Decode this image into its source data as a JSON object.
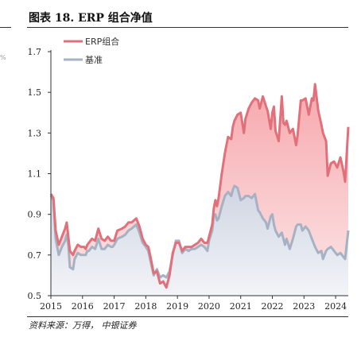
{
  "figure": {
    "title": "图表 18. ERP 组合净值",
    "source": "资料来源：万得， 中银证券",
    "stray_text": "%"
  },
  "colors": {
    "erp": "#e2707a",
    "benchmark": "#a7b1c4",
    "erp_fill_top": "#f6a3a8",
    "bench_fill_top": "#d8dde8"
  },
  "chart_data": {
    "type": "area",
    "title": "",
    "xlabel": "",
    "ylabel": "",
    "ylim": [
      0.5,
      1.7
    ],
    "yticks": [
      "0.5",
      "0.7",
      "0.9",
      "1.1",
      "1.3",
      "1.5",
      "1.7"
    ],
    "xlim": [
      2015.0,
      2024.4
    ],
    "xticks": [
      "2015",
      "2016",
      "2017",
      "2018",
      "2019",
      "2020",
      "2021",
      "2022",
      "2023",
      "2024"
    ],
    "grid": false,
    "legend_position": "top-left",
    "series": [
      {
        "name": "ERP组合",
        "x": [
          2015.0,
          2015.08,
          2015.15,
          2015.25,
          2015.35,
          2015.45,
          2015.5,
          2015.55,
          2015.6,
          2015.7,
          2015.75,
          2015.85,
          2015.95,
          2016.05,
          2016.1,
          2016.15,
          2016.2,
          2016.3,
          2016.4,
          2016.5,
          2016.6,
          2016.7,
          2016.8,
          2016.9,
          2016.95,
          2017.0,
          2017.1,
          2017.25,
          2017.35,
          2017.45,
          2017.55,
          2017.7,
          2017.8,
          2017.9,
          2018.0,
          2018.08,
          2018.15,
          2018.25,
          2018.35,
          2018.45,
          2018.55,
          2018.65,
          2018.75,
          2018.85,
          2018.95,
          2019.05,
          2019.15,
          2019.25,
          2019.35,
          2019.45,
          2019.55,
          2019.65,
          2019.75,
          2019.85,
          2019.95,
          2020.0,
          2020.1,
          2020.15,
          2020.2,
          2020.25,
          2020.3,
          2020.4,
          2020.5,
          2020.6,
          2020.7,
          2020.75,
          2020.8,
          2020.9,
          2021.0,
          2021.1,
          2021.15,
          2021.25,
          2021.35,
          2021.45,
          2021.55,
          2021.6,
          2021.7,
          2021.8,
          2021.85,
          2021.95,
          2022.0,
          2022.05,
          2022.1,
          2022.2,
          2022.3,
          2022.35,
          2022.4,
          2022.45,
          2022.55,
          2022.65,
          2022.75,
          2022.8,
          2022.9,
          2022.95,
          2023.05,
          2023.15,
          2023.25,
          2023.3,
          2023.35,
          2023.45,
          2023.55,
          2023.6,
          2023.7,
          2023.75,
          2023.85,
          2023.95,
          2024.05,
          2024.15,
          2024.25,
          2024.3,
          2024.4
        ],
        "values": [
          1.0,
          0.98,
          0.82,
          0.75,
          0.79,
          0.83,
          0.86,
          0.79,
          0.72,
          0.7,
          0.72,
          0.75,
          0.74,
          0.74,
          0.73,
          0.75,
          0.76,
          0.78,
          0.77,
          0.83,
          0.78,
          0.77,
          0.79,
          0.77,
          0.77,
          0.77,
          0.82,
          0.83,
          0.84,
          0.86,
          0.86,
          0.88,
          0.84,
          0.78,
          0.75,
          0.74,
          0.69,
          0.61,
          0.62,
          0.56,
          0.57,
          0.54,
          0.6,
          0.71,
          0.76,
          0.76,
          0.72,
          0.74,
          0.74,
          0.74,
          0.75,
          0.76,
          0.78,
          0.76,
          0.76,
          0.79,
          0.85,
          0.93,
          0.97,
          0.94,
          0.98,
          1.1,
          1.2,
          1.28,
          1.27,
          1.33,
          1.36,
          1.39,
          1.4,
          1.3,
          1.37,
          1.42,
          1.45,
          1.47,
          1.46,
          1.42,
          1.48,
          1.43,
          1.41,
          1.32,
          1.4,
          1.43,
          1.31,
          1.26,
          1.48,
          1.35,
          1.34,
          1.36,
          1.3,
          1.32,
          1.24,
          1.29,
          1.46,
          1.46,
          1.47,
          1.39,
          1.47,
          1.46,
          1.54,
          1.41,
          1.34,
          1.3,
          1.26,
          1.09,
          1.15,
          1.16,
          1.13,
          1.18,
          1.11,
          1.06,
          1.33
        ]
      },
      {
        "name": "基准",
        "x": [
          2015.0,
          2015.08,
          2015.15,
          2015.25,
          2015.35,
          2015.45,
          2015.5,
          2015.55,
          2015.6,
          2015.7,
          2015.75,
          2015.85,
          2015.95,
          2016.05,
          2016.1,
          2016.15,
          2016.2,
          2016.3,
          2016.4,
          2016.5,
          2016.6,
          2016.7,
          2016.8,
          2016.9,
          2016.95,
          2017.0,
          2017.1,
          2017.25,
          2017.35,
          2017.45,
          2017.55,
          2017.7,
          2017.8,
          2017.9,
          2018.0,
          2018.08,
          2018.15,
          2018.25,
          2018.35,
          2018.45,
          2018.55,
          2018.65,
          2018.75,
          2018.85,
          2018.95,
          2019.05,
          2019.15,
          2019.25,
          2019.35,
          2019.45,
          2019.55,
          2019.65,
          2019.75,
          2019.85,
          2019.95,
          2020.0,
          2020.1,
          2020.15,
          2020.2,
          2020.25,
          2020.3,
          2020.4,
          2020.5,
          2020.6,
          2020.7,
          2020.75,
          2020.8,
          2020.9,
          2021.0,
          2021.1,
          2021.15,
          2021.25,
          2021.35,
          2021.45,
          2021.55,
          2021.6,
          2021.7,
          2021.8,
          2021.85,
          2021.95,
          2022.0,
          2022.05,
          2022.1,
          2022.2,
          2022.3,
          2022.35,
          2022.4,
          2022.45,
          2022.55,
          2022.65,
          2022.75,
          2022.8,
          2022.9,
          2022.95,
          2023.05,
          2023.15,
          2023.25,
          2023.3,
          2023.35,
          2023.45,
          2023.55,
          2023.6,
          2023.7,
          2023.75,
          2023.85,
          2023.95,
          2024.05,
          2024.15,
          2024.25,
          2024.3,
          2024.4
        ],
        "values": [
          0.99,
          0.97,
          0.78,
          0.7,
          0.74,
          0.77,
          0.8,
          0.75,
          0.64,
          0.63,
          0.68,
          0.71,
          0.7,
          0.7,
          0.7,
          0.72,
          0.72,
          0.74,
          0.73,
          0.78,
          0.73,
          0.73,
          0.75,
          0.74,
          0.74,
          0.75,
          0.78,
          0.79,
          0.8,
          0.82,
          0.83,
          0.85,
          0.81,
          0.76,
          0.74,
          0.72,
          0.67,
          0.6,
          0.63,
          0.59,
          0.6,
          0.59,
          0.62,
          0.7,
          0.77,
          0.77,
          0.71,
          0.73,
          0.72,
          0.73,
          0.73,
          0.74,
          0.75,
          0.74,
          0.72,
          0.77,
          0.82,
          0.89,
          0.9,
          0.87,
          0.88,
          0.94,
          0.99,
          1.01,
          0.99,
          1.02,
          1.04,
          1.03,
          0.97,
          0.98,
          0.99,
          0.99,
          0.98,
          1.0,
          0.92,
          0.91,
          0.88,
          0.86,
          0.83,
          0.89,
          0.9,
          0.85,
          0.82,
          0.79,
          0.81,
          0.78,
          0.75,
          0.78,
          0.73,
          0.78,
          0.84,
          0.85,
          0.85,
          0.82,
          0.84,
          0.82,
          0.78,
          0.76,
          0.74,
          0.71,
          0.72,
          0.68,
          0.72,
          0.73,
          0.74,
          0.72,
          0.7,
          0.71,
          0.69,
          0.68,
          0.82
        ]
      }
    ]
  }
}
